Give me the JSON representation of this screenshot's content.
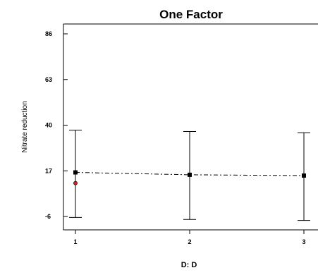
{
  "chart_data": {
    "type": "scatter",
    "title": "One Factor",
    "xlabel": "D: D",
    "ylabel": "Nitrate reduction",
    "x_ticks": [
      "1",
      "2",
      "3"
    ],
    "y_ticks": [
      "-6",
      "17",
      "40",
      "63",
      "86"
    ],
    "ylim": [
      -6,
      86
    ],
    "xlim": [
      1,
      3
    ],
    "grid": false,
    "points": [
      {
        "x": 1,
        "y": 16.2,
        "lower": -6.5,
        "upper": 37.5
      },
      {
        "x": 2,
        "y": 15.0,
        "lower": -7.5,
        "upper": 36.8
      },
      {
        "x": 3,
        "y": 14.6,
        "lower": -8.0,
        "upper": 36.2
      }
    ],
    "trend_line": [
      {
        "x": 1,
        "y": 16.2
      },
      {
        "x": 2,
        "y": 15.0
      },
      {
        "x": 3,
        "y": 14.6
      }
    ],
    "observations": [
      {
        "x": 1,
        "y": 10.8
      }
    ],
    "colors": {
      "axis": "#000000",
      "marker": "#000000",
      "observation": "#cc2222",
      "trend": "#000000"
    }
  }
}
